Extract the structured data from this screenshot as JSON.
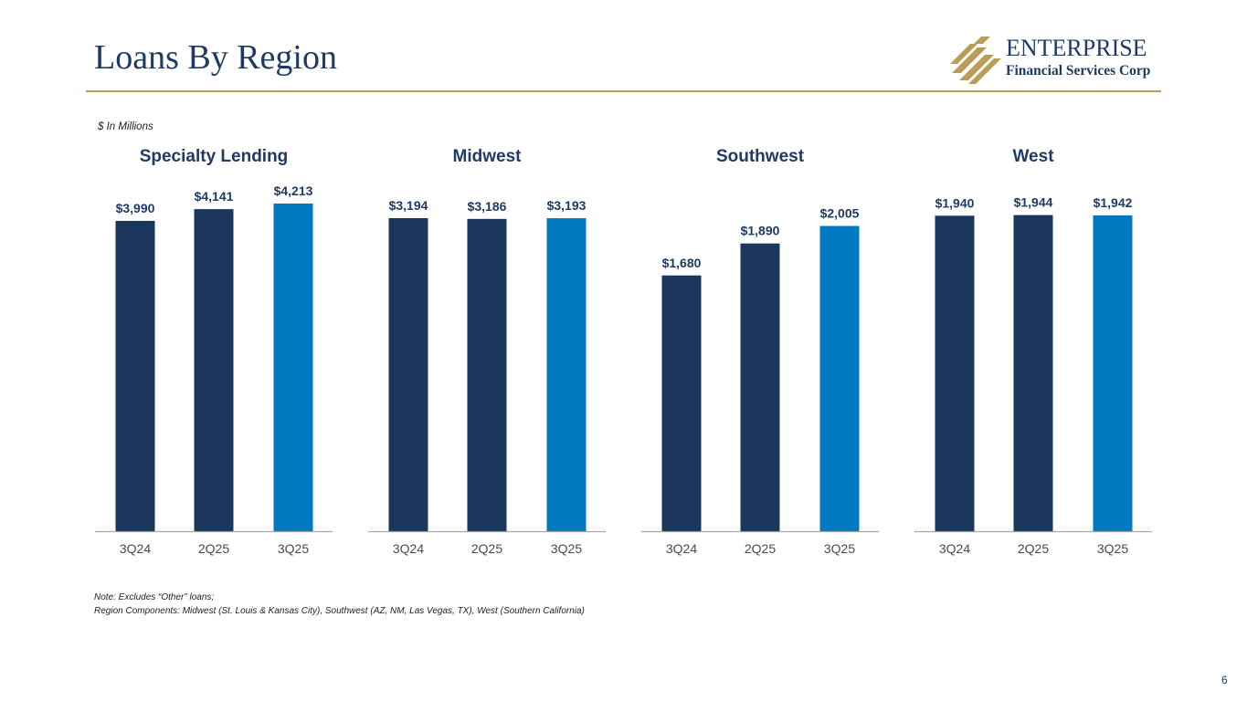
{
  "page": {
    "title": "Loans By Region",
    "units_note": "$ In Millions",
    "note_line1": "Note: Excludes “Other” loans;",
    "note_line2": "Region Components: Midwest (St. Louis & Kansas City), Southwest (AZ, NM, Las Vegas, TX), West (Southern California)",
    "page_number": "6"
  },
  "logo": {
    "name": "ENTERPRISE",
    "tagline": "Financial Services Corp"
  },
  "colors": {
    "navy": "#1b375e",
    "blue": "#0079c1",
    "title_text": "#1f3b63",
    "gold": "#b99c56",
    "axis": "#a6a6a6",
    "tick_label": "#4a4a4a"
  },
  "chart_data": [
    {
      "type": "bar",
      "title": "Specialty Lending",
      "categories": [
        "3Q24",
        "2Q25",
        "3Q25"
      ],
      "values": [
        3990,
        4141,
        4213
      ],
      "labels": [
        "$3,990",
        "$4,141",
        "$4,213"
      ],
      "ylim": [
        0,
        4600
      ],
      "grid": false
    },
    {
      "type": "bar",
      "title": "Midwest",
      "categories": [
        "3Q24",
        "2Q25",
        "3Q25"
      ],
      "values": [
        3194,
        3186,
        3193
      ],
      "labels": [
        "$3,194",
        "$3,186",
        "$3,193"
      ],
      "ylim": [
        0,
        3650
      ],
      "grid": false
    },
    {
      "type": "bar",
      "title": "Southwest",
      "categories": [
        "3Q24",
        "2Q25",
        "3Q25"
      ],
      "values": [
        1680,
        1890,
        2005
      ],
      "labels": [
        "$1,680",
        "$1,890",
        "$2,005"
      ],
      "ylim": [
        0,
        2350
      ],
      "grid": false
    },
    {
      "type": "bar",
      "title": "West",
      "categories": [
        "3Q24",
        "2Q25",
        "3Q25"
      ],
      "values": [
        1940,
        1944,
        1942
      ],
      "labels": [
        "$1,940",
        "$1,944",
        "$1,942"
      ],
      "ylim": [
        0,
        2200
      ],
      "grid": false
    }
  ]
}
